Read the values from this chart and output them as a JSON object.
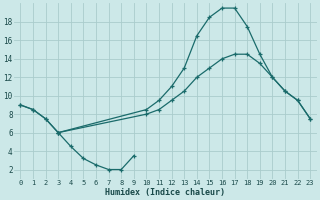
{
  "xlabel": "Humidex (Indice chaleur)",
  "background_color": "#cce8e8",
  "grid_color": "#aacccc",
  "line_color": "#1a6b6b",
  "xlim": [
    -0.5,
    23.5
  ],
  "ylim": [
    1,
    20
  ],
  "yticks": [
    2,
    4,
    6,
    8,
    10,
    12,
    14,
    16,
    18
  ],
  "xticks": [
    0,
    1,
    2,
    3,
    4,
    5,
    6,
    7,
    8,
    9,
    10,
    11,
    12,
    13,
    14,
    15,
    16,
    17,
    18,
    19,
    20,
    21,
    22,
    23
  ],
  "curve_peak_x": [
    0,
    1,
    2,
    3,
    10,
    11,
    12,
    13,
    14,
    15,
    16,
    17,
    18,
    19,
    20,
    21,
    22,
    23
  ],
  "curve_peak_y": [
    9,
    8.5,
    7.5,
    6.0,
    8.5,
    9.5,
    11.0,
    13.0,
    16.5,
    18.5,
    19.5,
    19.5,
    17.5,
    14.5,
    12.0,
    10.5,
    9.5,
    7.5
  ],
  "curve_mid_x": [
    0,
    1,
    2,
    3,
    10,
    11,
    12,
    13,
    14,
    15,
    16,
    17,
    18,
    19,
    20,
    21,
    22,
    23
  ],
  "curve_mid_y": [
    9,
    8.5,
    7.5,
    6.0,
    8.0,
    8.5,
    9.5,
    10.5,
    12.0,
    13.0,
    14.0,
    14.5,
    14.5,
    13.5,
    12.0,
    10.5,
    9.5,
    7.5
  ],
  "curve_dip_x": [
    3,
    4,
    5,
    6,
    7,
    8,
    9
  ],
  "curve_dip_y": [
    6.0,
    4.5,
    3.2,
    2.5,
    2.0,
    2.0,
    3.5
  ]
}
